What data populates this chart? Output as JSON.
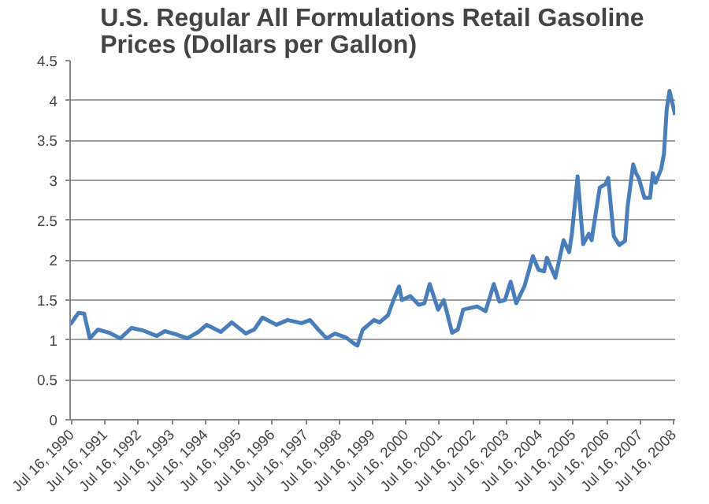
{
  "chart_data": {
    "type": "line",
    "title": "U.S. Regular All Formulations Retail Gasoline Prices (Dollars per Gallon)",
    "x": [
      "1990-07",
      "1990-10",
      "1990-12",
      "1991-02",
      "1991-05",
      "1991-09",
      "1992-01",
      "1992-05",
      "1992-09",
      "1993-02",
      "1993-05",
      "1993-09",
      "1994-01",
      "1994-05",
      "1994-08",
      "1995-01",
      "1995-05",
      "1995-10",
      "1996-01",
      "1996-04",
      "1996-09",
      "1997-01",
      "1997-06",
      "1997-09",
      "1997-12",
      "1998-03",
      "1998-06",
      "1998-10",
      "1999-01",
      "1999-02",
      "1999-04",
      "1999-08",
      "1999-10",
      "2000-01",
      "2000-03",
      "2000-05",
      "2000-06",
      "2000-09",
      "2000-12",
      "2001-02",
      "2001-04",
      "2001-07",
      "2001-09",
      "2001-12",
      "2002-02",
      "2002-04",
      "2002-09",
      "2002-12",
      "2003-03",
      "2003-05",
      "2003-07",
      "2003-09",
      "2003-11",
      "2004-02",
      "2004-05",
      "2004-07",
      "2004-09",
      "2004-10",
      "2005-01",
      "2005-04",
      "2005-06",
      "2005-07",
      "2005-09",
      "2005-11",
      "2006-01",
      "2006-02",
      "2006-05",
      "2006-07",
      "2006-08",
      "2006-10",
      "2006-12",
      "2007-02",
      "2007-03",
      "2007-05",
      "2007-06",
      "2007-07",
      "2007-09",
      "2007-11",
      "2007-12",
      "2008-01",
      "2008-03",
      "2008-04",
      "2008-05",
      "2008-06",
      "2008-08"
    ],
    "series": [
      {
        "color": "#4a7ebb",
        "values": [
          1.19,
          1.34,
          1.33,
          1.02,
          1.13,
          1.09,
          1.02,
          1.15,
          1.12,
          1.05,
          1.11,
          1.07,
          1.02,
          1.1,
          1.19,
          1.1,
          1.22,
          1.08,
          1.13,
          1.28,
          1.19,
          1.25,
          1.21,
          1.25,
          1.13,
          1.02,
          1.08,
          1.03,
          0.95,
          0.93,
          1.13,
          1.25,
          1.22,
          1.31,
          1.5,
          1.67,
          1.5,
          1.55,
          1.44,
          1.46,
          1.7,
          1.38,
          1.5,
          1.09,
          1.13,
          1.38,
          1.42,
          1.36,
          1.7,
          1.48,
          1.5,
          1.73,
          1.46,
          1.68,
          2.05,
          1.88,
          1.86,
          2.03,
          1.78,
          2.25,
          2.1,
          2.33,
          3.05,
          2.2,
          2.33,
          2.25,
          2.91,
          2.95,
          3.03,
          2.3,
          2.19,
          2.24,
          2.67,
          3.2,
          3.09,
          3.03,
          2.78,
          2.78,
          3.09,
          2.97,
          3.14,
          3.33,
          3.89,
          4.12,
          3.82
        ]
      }
    ],
    "xlim": [
      "1990-07-01",
      "2008-08-01"
    ],
    "xticks": [
      {
        "value": "1990-07-16",
        "label": "Jul 16, 1990"
      },
      {
        "value": "1991-07-16",
        "label": "Jul 16, 1991"
      },
      {
        "value": "1992-07-16",
        "label": "Jul 16, 1992"
      },
      {
        "value": "1993-07-16",
        "label": "Jul 16, 1993"
      },
      {
        "value": "1994-07-16",
        "label": "Jul 16, 1994"
      },
      {
        "value": "1995-07-16",
        "label": "Jul 16, 1995"
      },
      {
        "value": "1996-07-16",
        "label": "Jul 16, 1996"
      },
      {
        "value": "1997-07-16",
        "label": "Jul 16, 1997"
      },
      {
        "value": "1998-07-16",
        "label": "Jul 16, 1998"
      },
      {
        "value": "1999-07-16",
        "label": "Jul 16, 1999"
      },
      {
        "value": "2000-07-16",
        "label": "Jul 16, 2000"
      },
      {
        "value": "2001-07-16",
        "label": "Jul 16, 2001"
      },
      {
        "value": "2002-07-16",
        "label": "Jul 16, 2002"
      },
      {
        "value": "2003-07-16",
        "label": "Jul 16, 2003"
      },
      {
        "value": "2004-07-16",
        "label": "Jul 16, 2004"
      },
      {
        "value": "2005-07-16",
        "label": "Jul 16, 2005"
      },
      {
        "value": "2006-07-16",
        "label": "Jul 16, 2006"
      },
      {
        "value": "2007-07-16",
        "label": "Jul 16, 2007"
      },
      {
        "value": "2008-07-16",
        "label": "Jul 16, 2008"
      }
    ],
    "ylim": [
      0,
      4.5
    ],
    "yticks": [
      0,
      0.5,
      1,
      1.5,
      2,
      2.5,
      3,
      3.5,
      4,
      4.5
    ],
    "grid": "y",
    "marker": "none",
    "line_style": "solid"
  }
}
